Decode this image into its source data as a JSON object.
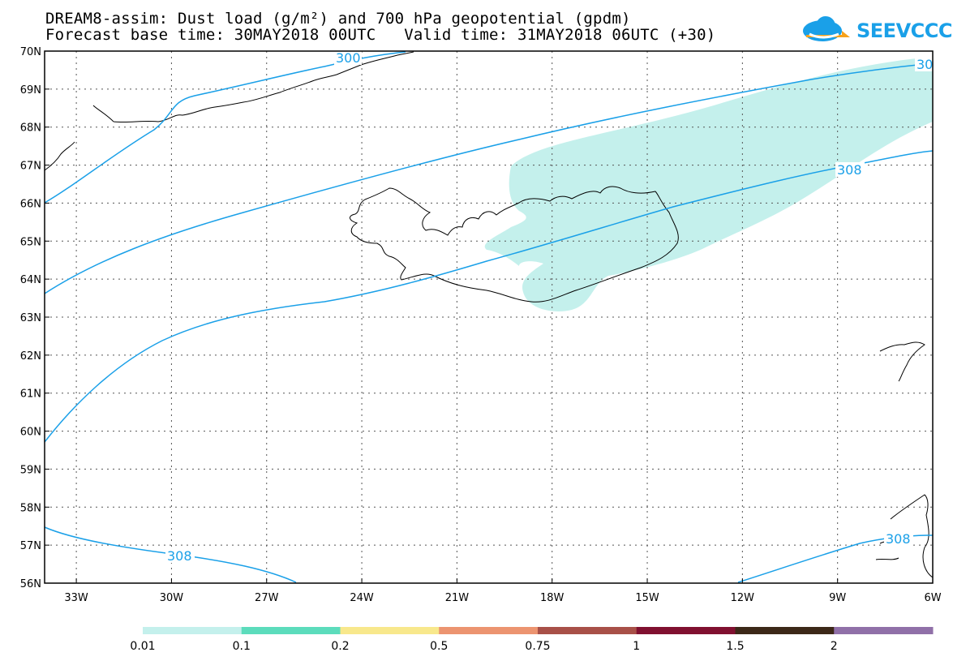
{
  "header": {
    "line1": "DREAM8-assim: Dust load (g/m²) and 700 hPa geopotential (gpdm)",
    "line2": "Forecast base time: 30MAY2018 00UTC   Valid time: 31MAY2018 06UTC (+30)"
  },
  "logo": {
    "text": "SEEVCCC",
    "icon": "cloud-arrow-icon",
    "color": "#1aa0e8"
  },
  "map": {
    "lon_range": [
      -34,
      -6
    ],
    "lat_range": [
      56,
      70
    ],
    "lon_ticks": [
      "33W",
      "30W",
      "27W",
      "24W",
      "21W",
      "18W",
      "15W",
      "12W",
      "9W",
      "6W"
    ],
    "lat_ticks": [
      "56N",
      "57N",
      "58N",
      "59N",
      "60N",
      "61N",
      "62N",
      "63N",
      "64N",
      "65N",
      "66N",
      "67N",
      "68N",
      "69N",
      "70N"
    ],
    "grid": true,
    "contour_color": "#1aa0e8",
    "dust_color": "#c4f0ec",
    "contour_labels": [
      "300",
      "30",
      "308",
      "308",
      "308"
    ]
  },
  "colorbar": {
    "labels": [
      "0.01",
      "0.1",
      "0.2",
      "0.5",
      "0.75",
      "1",
      "1.5",
      "2"
    ],
    "colors": [
      "#c4f0ec",
      "#5cdcbc",
      "#f8e88c",
      "#ec9470",
      "#a85048",
      "#801030",
      "#3c2818",
      "#9070a8"
    ]
  }
}
